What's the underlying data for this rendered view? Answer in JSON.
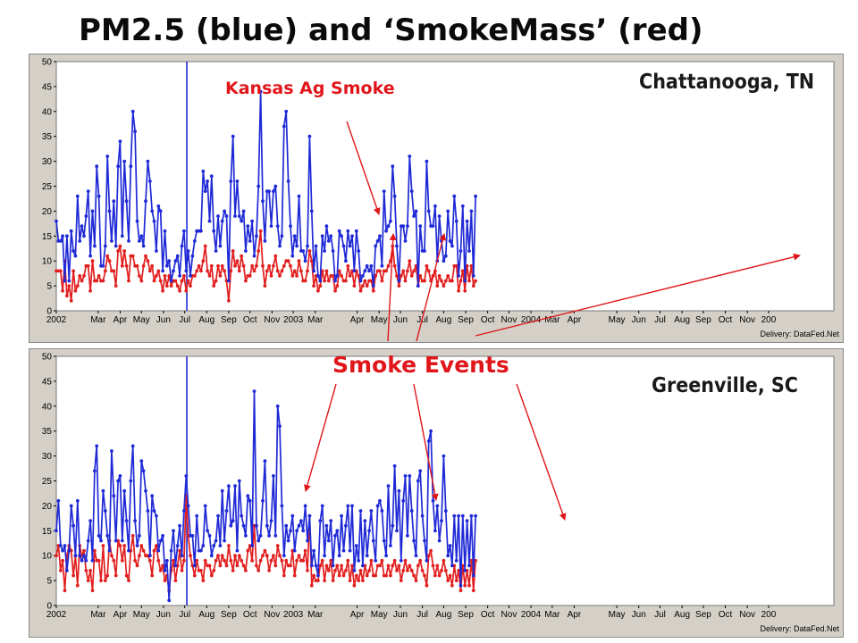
{
  "title": "PM2.5 (blue) and ‘SmokeMass’ (red)",
  "annotations": {
    "kansas": "Kansas Ag Smoke",
    "smoke_events": "Smoke Events"
  },
  "colors": {
    "pm25": "#1f2ad6",
    "smokemass": "#e21f1f",
    "annotation": "#e0161b",
    "panel_bg": "#d4d0c8",
    "plot_bg": "#ffffff"
  },
  "chart_data": [
    {
      "type": "line",
      "site": "Chattanooga, TN",
      "delivery": "Delivery: DataFed.Net",
      "ylim": [
        0,
        50
      ],
      "yticks": [
        "0",
        "5",
        "10",
        "15",
        "20",
        "25",
        "30",
        "35",
        "40",
        "45",
        "50"
      ],
      "xticks": [
        "2002",
        "Mar",
        "Apr",
        "May",
        "Jun",
        "Jul",
        "Aug",
        "Sep",
        "Oct",
        "Nov",
        "2003",
        "Mar",
        "Apr",
        "May",
        "Jun",
        "Jul",
        "Aug",
        "Sep",
        "Oct",
        "Nov",
        "2004",
        "Mar",
        "Apr",
        "May",
        "Jun",
        "Jul",
        "Aug",
        "Sep",
        "Oct",
        "Nov",
        "200"
      ],
      "marker_date": "2002-07-04",
      "series": [
        {
          "name": "PM2.5",
          "color": "#1f2ad6",
          "x_start": "2002-01-01",
          "step_days": 3,
          "values": [
            18,
            14,
            14,
            15,
            6,
            15,
            6,
            16,
            12,
            11,
            23,
            14,
            17,
            15,
            19,
            24,
            11,
            20,
            13,
            29,
            23,
            9,
            9,
            13,
            31,
            20,
            14,
            22,
            13,
            29,
            34,
            15,
            30,
            22,
            14,
            29,
            40,
            36,
            18,
            14,
            15,
            13,
            22,
            30,
            26,
            20,
            18,
            12,
            21,
            20,
            8,
            16,
            9,
            10,
            6,
            8,
            10,
            11,
            7,
            13,
            16,
            8,
            12,
            7,
            11,
            14,
            16,
            16,
            16,
            28,
            24,
            26,
            18,
            27,
            16,
            12,
            19,
            13,
            18,
            20,
            19,
            6,
            26,
            35,
            19,
            26,
            19,
            18,
            20,
            12,
            17,
            14,
            18,
            11,
            15,
            25,
            44,
            22,
            14,
            24,
            24,
            17,
            24,
            25,
            17,
            13,
            15,
            37,
            40,
            26,
            17,
            11,
            15,
            13,
            23,
            12,
            12,
            10,
            13,
            35,
            20,
            8,
            13,
            7,
            6,
            15,
            12,
            17,
            14,
            15,
            12,
            6,
            7,
            16,
            15,
            13,
            10,
            16,
            13,
            15,
            8,
            16,
            12,
            6,
            7,
            8,
            9,
            8,
            9,
            5,
            13,
            14,
            15,
            9,
            24,
            16,
            17,
            18,
            29,
            23,
            13,
            6,
            17,
            17,
            14,
            17,
            31,
            24,
            19,
            20,
            5,
            17,
            12,
            12,
            30,
            20,
            17,
            17,
            21,
            10,
            19,
            14,
            10,
            11,
            20,
            14,
            13,
            23,
            18,
            7,
            12,
            21,
            6,
            18,
            12,
            20,
            7,
            23
          ]
        },
        {
          "name": "SmokeMass",
          "color": "#e21f1f",
          "x_start": "2002-01-01",
          "step_days": 3,
          "values": [
            8,
            8,
            8,
            4,
            10,
            3,
            5,
            2,
            8,
            4,
            5,
            7,
            6,
            7,
            9,
            9,
            4,
            10,
            6,
            6,
            7,
            6,
            6,
            8,
            11,
            10,
            8,
            8,
            5,
            12,
            13,
            9,
            12,
            9,
            6,
            11,
            11,
            9,
            9,
            7,
            6,
            9,
            11,
            10,
            8,
            9,
            6,
            7,
            8,
            6,
            4,
            7,
            5,
            7,
            5,
            6,
            6,
            5,
            4,
            6,
            7,
            4,
            6,
            5,
            7,
            7,
            8,
            9,
            8,
            10,
            13,
            8,
            7,
            9,
            5,
            6,
            9,
            7,
            9,
            8,
            6,
            2,
            8,
            12,
            9,
            10,
            8,
            11,
            9,
            6,
            7,
            7,
            9,
            8,
            9,
            12,
            16,
            9,
            5,
            8,
            9,
            7,
            9,
            11,
            8,
            7,
            8,
            9,
            10,
            10,
            9,
            7,
            8,
            7,
            10,
            8,
            6,
            6,
            8,
            12,
            10,
            5,
            7,
            4,
            5,
            8,
            6,
            8,
            6,
            7,
            7,
            4,
            5,
            8,
            7,
            6,
            6,
            9,
            7,
            8,
            5,
            8,
            7,
            4,
            5,
            6,
            5,
            6,
            6,
            4,
            7,
            8,
            8,
            6,
            8,
            8,
            9,
            10,
            13,
            9,
            7,
            5,
            7,
            8,
            6,
            8,
            10,
            7,
            8,
            9,
            5,
            7,
            6,
            6,
            9,
            8,
            6,
            7,
            8,
            5,
            7,
            6,
            5,
            6,
            7,
            6,
            6,
            9,
            9,
            4,
            6,
            8,
            4,
            9,
            6,
            9,
            5,
            6
          ]
        }
      ]
    },
    {
      "type": "line",
      "site": "Greenville, SC",
      "delivery": "Delivery: DataFed.Net",
      "ylim": [
        0,
        50
      ],
      "yticks": [
        "0",
        "5",
        "10",
        "15",
        "20",
        "25",
        "30",
        "35",
        "40",
        "45",
        "50"
      ],
      "xticks": [
        "2002",
        "Mar",
        "Apr",
        "May",
        "Jun",
        "Jul",
        "Aug",
        "Sep",
        "Oct",
        "Nov",
        "2003",
        "Mar",
        "Apr",
        "May",
        "Jun",
        "Jul",
        "Aug",
        "Sep",
        "Oct",
        "Nov",
        "2004",
        "Mar",
        "Apr",
        "May",
        "Jun",
        "Jul",
        "Aug",
        "Sep",
        "Oct",
        "Nov",
        "200"
      ],
      "marker_date": "2002-07-04",
      "series": [
        {
          "name": "PM2.5",
          "color": "#1f2ad6",
          "x_start": "2002-01-01",
          "step_days": 3,
          "values": [
            15,
            21,
            12,
            11,
            12,
            7,
            11,
            20,
            16,
            10,
            21,
            10,
            9,
            10,
            9,
            13,
            17,
            9,
            27,
            32,
            14,
            13,
            23,
            19,
            14,
            11,
            31,
            22,
            13,
            25,
            26,
            13,
            23,
            17,
            11,
            25,
            32,
            17,
            12,
            14,
            29,
            27,
            23,
            19,
            10,
            22,
            19,
            18,
            11,
            13,
            14,
            7,
            9,
            1,
            11,
            15,
            8,
            12,
            16,
            10,
            19,
            26,
            20,
            14,
            14,
            8,
            18,
            11,
            11,
            12,
            20,
            15,
            14,
            10,
            12,
            13,
            18,
            12,
            23,
            13,
            19,
            24,
            16,
            17,
            24,
            11,
            25,
            18,
            16,
            14,
            22,
            21,
            12,
            43,
            16,
            13,
            14,
            21,
            29,
            16,
            14,
            17,
            26,
            14,
            40,
            36,
            20,
            10,
            16,
            13,
            15,
            18,
            11,
            15,
            16,
            17,
            15,
            20,
            13,
            18,
            8,
            11,
            8,
            6,
            17,
            20,
            10,
            16,
            13,
            17,
            8,
            14,
            15,
            10,
            18,
            11,
            16,
            20,
            11,
            20,
            7,
            12,
            9,
            19,
            8,
            17,
            10,
            15,
            19,
            13,
            9,
            20,
            21,
            19,
            13,
            10,
            24,
            12,
            16,
            28,
            15,
            23,
            9,
            21,
            26,
            14,
            26,
            19,
            13,
            10,
            25,
            27,
            18,
            13,
            9,
            33,
            35,
            21,
            15,
            20,
            13,
            17,
            30,
            19,
            10,
            12,
            8,
            18,
            9,
            18,
            4,
            18,
            7,
            17,
            8,
            18,
            6,
            18
          ]
        },
        {
          "name": "SmokeMass",
          "color": "#e21f1f",
          "x_start": "2002-01-01",
          "step_days": 3,
          "values": [
            10,
            12,
            7,
            9,
            3,
            10,
            12,
            11,
            6,
            10,
            4,
            12,
            10,
            11,
            7,
            5,
            7,
            3,
            11,
            9,
            9,
            5,
            12,
            5,
            6,
            13,
            10,
            9,
            6,
            13,
            12,
            9,
            12,
            6,
            5,
            11,
            14,
            9,
            8,
            10,
            12,
            11,
            10,
            10,
            9,
            6,
            11,
            12,
            9,
            7,
            8,
            5,
            6,
            3,
            7,
            9,
            5,
            8,
            11,
            7,
            9,
            22,
            14,
            10,
            8,
            6,
            9,
            7,
            7,
            5,
            9,
            8,
            8,
            6,
            7,
            9,
            10,
            8,
            10,
            9,
            8,
            12,
            9,
            7,
            10,
            8,
            10,
            9,
            8,
            7,
            11,
            12,
            9,
            16,
            8,
            7,
            9,
            10,
            11,
            10,
            7,
            9,
            10,
            8,
            12,
            10,
            9,
            6,
            9,
            8,
            8,
            11,
            6,
            9,
            10,
            9,
            9,
            11,
            7,
            18,
            4,
            6,
            5,
            5,
            8,
            9,
            5,
            8,
            7,
            9,
            5,
            7,
            8,
            6,
            8,
            6,
            7,
            9,
            5,
            8,
            4,
            6,
            5,
            7,
            5,
            8,
            6,
            7,
            9,
            6,
            6,
            8,
            8,
            9,
            6,
            6,
            8,
            6,
            8,
            9,
            7,
            8,
            5,
            7,
            9,
            7,
            8,
            7,
            6,
            5,
            8,
            9,
            7,
            6,
            4,
            10,
            11,
            8,
            6,
            8,
            6,
            7,
            9,
            7,
            5,
            6,
            4,
            8,
            5,
            7,
            3,
            8,
            4,
            7,
            4,
            9,
            3,
            9
          ]
        }
      ]
    }
  ]
}
